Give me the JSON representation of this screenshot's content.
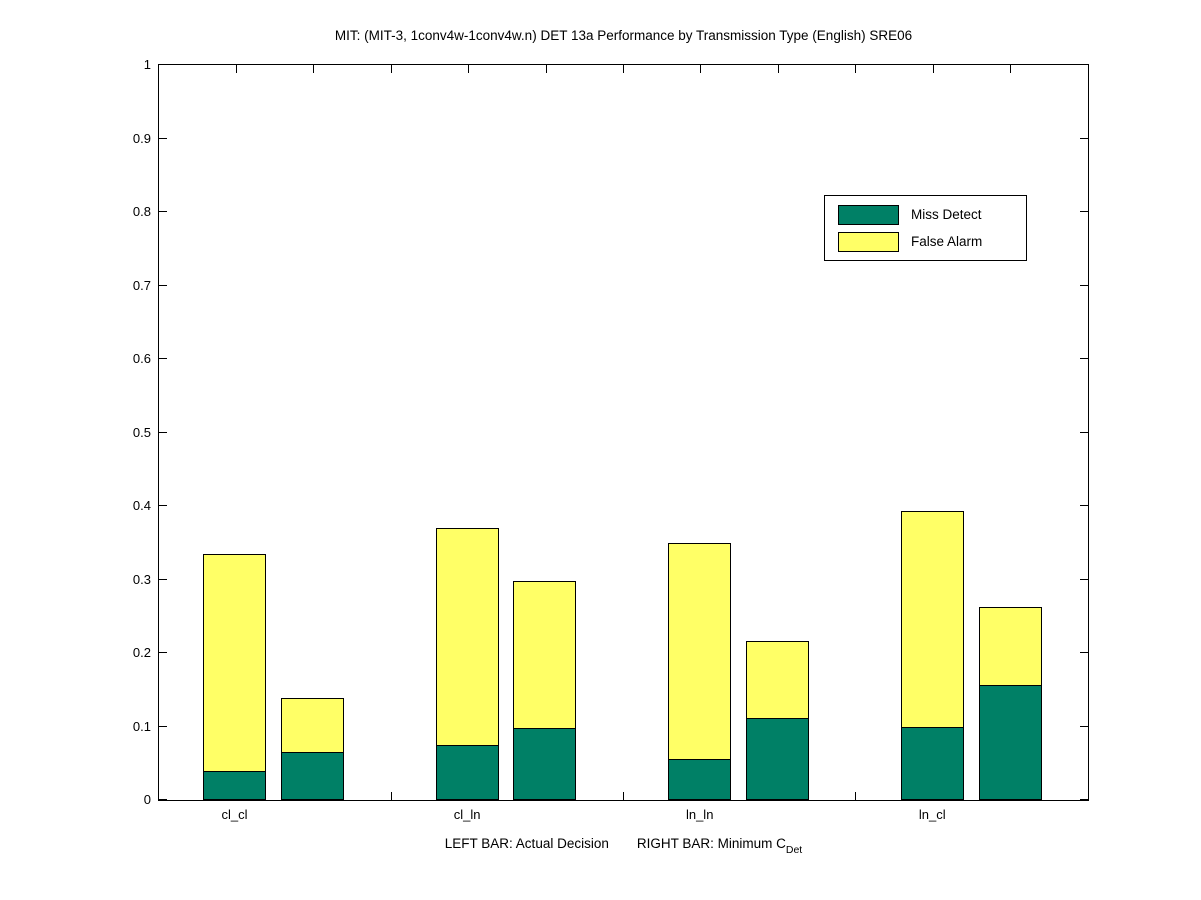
{
  "chart_data": {
    "type": "bar",
    "stacked": true,
    "title": "MIT: (MIT-3, 1conv4w-1conv4w.n) DET 13a Performance by Transmission Type (English) SRE06",
    "categories": [
      "cl_cl",
      "cl_ln",
      "ln_ln",
      "ln_cl"
    ],
    "series_names": [
      "Miss Detect",
      "False Alarm"
    ],
    "left_bar_meaning": "Actual Decision",
    "right_bar_meaning": "Minimum C_Det",
    "groups": [
      {
        "category": "cl_cl",
        "left_bar": {
          "miss_detect": 0.038,
          "false_alarm": 0.295
        },
        "right_bar": {
          "miss_detect": 0.064,
          "false_alarm": 0.074
        }
      },
      {
        "category": "cl_ln",
        "left_bar": {
          "miss_detect": 0.073,
          "false_alarm": 0.295
        },
        "right_bar": {
          "miss_detect": 0.096,
          "false_alarm": 0.2
        }
      },
      {
        "category": "ln_ln",
        "left_bar": {
          "miss_detect": 0.055,
          "false_alarm": 0.294
        },
        "right_bar": {
          "miss_detect": 0.11,
          "false_alarm": 0.105
        }
      },
      {
        "category": "ln_cl",
        "left_bar": {
          "miss_detect": 0.098,
          "false_alarm": 0.294
        },
        "right_bar": {
          "miss_detect": 0.155,
          "false_alarm": 0.106
        }
      }
    ],
    "ylim": [
      0,
      1
    ],
    "yticks": [
      "0",
      "0.1",
      "0.2",
      "0.3",
      "0.4",
      "0.5",
      "0.6",
      "0.7",
      "0.8",
      "0.9",
      "1"
    ],
    "grid": false,
    "legend": {
      "position": "upper-right",
      "entries": [
        {
          "label": "Miss Detect",
          "color": "#008066"
        },
        {
          "label": "False Alarm",
          "color": "#FFFF66"
        }
      ]
    },
    "xlabel": {
      "left_part": "LEFT BAR: Actual Decision",
      "right_part_prefix": "RIGHT BAR: Minimum C",
      "right_part_subscript": "Det"
    },
    "colors": {
      "miss_detect": "#008066",
      "false_alarm": "#FFFF66",
      "axis": "#000000"
    }
  }
}
